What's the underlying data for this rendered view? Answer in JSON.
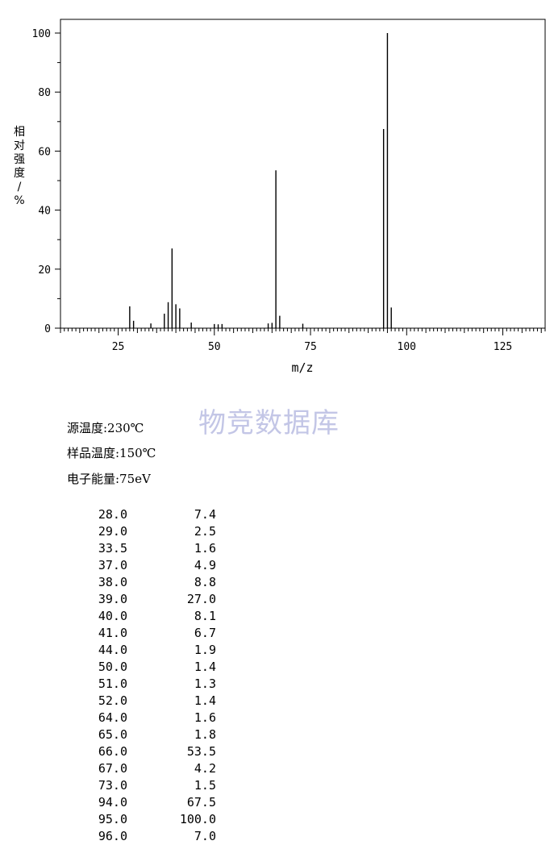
{
  "chart_data": {
    "type": "bar",
    "xlabel": "m/z",
    "ylabel": "相对强度/%",
    "xlim": [
      10,
      136
    ],
    "ylim": [
      0,
      105
    ],
    "x_ticks": [
      25,
      50,
      75,
      100,
      125
    ],
    "y_ticks": [
      0,
      20,
      40,
      60,
      80,
      100
    ],
    "grid": false,
    "peaks": [
      {
        "mz": 28.0,
        "intensity": 7.4
      },
      {
        "mz": 29.0,
        "intensity": 2.5
      },
      {
        "mz": 33.5,
        "intensity": 1.6
      },
      {
        "mz": 37.0,
        "intensity": 4.9
      },
      {
        "mz": 38.0,
        "intensity": 8.8
      },
      {
        "mz": 39.0,
        "intensity": 27.0
      },
      {
        "mz": 40.0,
        "intensity": 8.1
      },
      {
        "mz": 41.0,
        "intensity": 6.7
      },
      {
        "mz": 44.0,
        "intensity": 1.9
      },
      {
        "mz": 50.0,
        "intensity": 1.4
      },
      {
        "mz": 51.0,
        "intensity": 1.3
      },
      {
        "mz": 52.0,
        "intensity": 1.4
      },
      {
        "mz": 64.0,
        "intensity": 1.6
      },
      {
        "mz": 65.0,
        "intensity": 1.8
      },
      {
        "mz": 66.0,
        "intensity": 53.5
      },
      {
        "mz": 67.0,
        "intensity": 4.2
      },
      {
        "mz": 73.0,
        "intensity": 1.5
      },
      {
        "mz": 94.0,
        "intensity": 67.5
      },
      {
        "mz": 95.0,
        "intensity": 100.0
      },
      {
        "mz": 96.0,
        "intensity": 7.0
      }
    ]
  },
  "watermark": "物竞数据库",
  "conditions": [
    "源温度:230℃",
    "样品温度:150℃",
    "电子能量:75eV"
  ],
  "table": [
    [
      "28.0",
      "7.4"
    ],
    [
      "29.0",
      "2.5"
    ],
    [
      "33.5",
      "1.6"
    ],
    [
      "37.0",
      "4.9"
    ],
    [
      "38.0",
      "8.8"
    ],
    [
      "39.0",
      "27.0"
    ],
    [
      "40.0",
      "8.1"
    ],
    [
      "41.0",
      "6.7"
    ],
    [
      "44.0",
      "1.9"
    ],
    [
      "50.0",
      "1.4"
    ],
    [
      "51.0",
      "1.3"
    ],
    [
      "52.0",
      "1.4"
    ],
    [
      "64.0",
      "1.6"
    ],
    [
      "65.0",
      "1.8"
    ],
    [
      "66.0",
      "53.5"
    ],
    [
      "67.0",
      "4.2"
    ],
    [
      "73.0",
      "1.5"
    ],
    [
      "94.0",
      "67.5"
    ],
    [
      "95.0",
      "100.0"
    ],
    [
      "96.0",
      "7.0"
    ]
  ]
}
